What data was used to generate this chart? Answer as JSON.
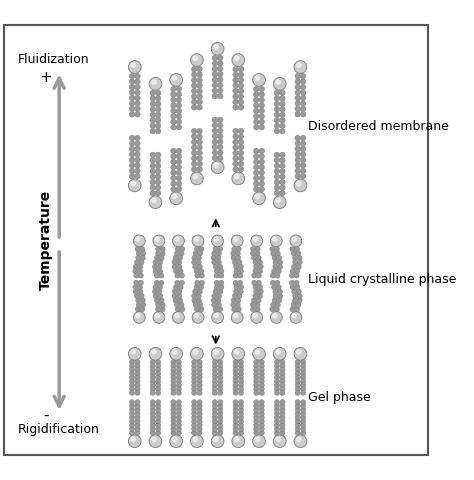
{
  "bg_color": "#ffffff",
  "border_color": "#555555",
  "head_color_light": "#cccccc",
  "head_color_dark": "#999999",
  "head_edge_color": "#777777",
  "tail_color": "#999999",
  "tail_edge_color": "#777777",
  "arrow_color": "#999999",
  "temp_label": "Temperature",
  "fluidization_label": "Fluidization",
  "rigidification_label": "Rigidification",
  "plus_label": "+",
  "minus_label": "-",
  "disordered_label": "Disordered membrane",
  "liquid_label": "Liquid crystalline phase",
  "gel_label": "Gel phase",
  "label_fontsize": 9,
  "temp_fontsize": 10,
  "figure_width": 4.74,
  "figure_height": 4.8,
  "dpi": 100
}
